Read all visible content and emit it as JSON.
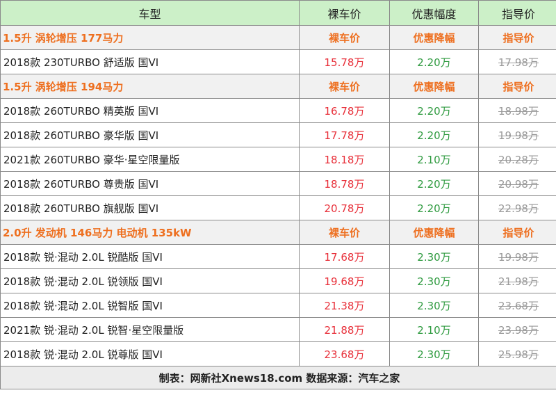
{
  "header": {
    "model": "车型",
    "price": "裸车价",
    "discount": "优惠幅度",
    "guide": "指导价"
  },
  "groups": [
    {
      "title": "1.5升 涡轮增压 177马力",
      "price": "裸车价",
      "discount": "优惠降幅",
      "guide": "指导价",
      "rows": [
        {
          "model": "2018款 230TURBO 舒适版 国VI",
          "price": "15.78万",
          "discount": "2.20万",
          "guide": "17.98万"
        }
      ]
    },
    {
      "title": "1.5升 涡轮增压 194马力",
      "price": "裸车价",
      "discount": "优惠降幅",
      "guide": "指导价",
      "rows": [
        {
          "model": "2018款 260TURBO 精英版 国VI",
          "price": "16.78万",
          "discount": "2.20万",
          "guide": "18.98万"
        },
        {
          "model": "2018款 260TURBO 豪华版 国VI",
          "price": "17.78万",
          "discount": "2.20万",
          "guide": "19.98万"
        },
        {
          "model": "2021款 260TURBO 豪华·星空限量版",
          "price": "18.18万",
          "discount": "2.10万",
          "guide": "20.28万"
        },
        {
          "model": "2018款 260TURBO 尊贵版 国VI",
          "price": "18.78万",
          "discount": "2.20万",
          "guide": "20.98万"
        },
        {
          "model": "2018款 260TURBO 旗舰版 国VI",
          "price": "20.78万",
          "discount": "2.20万",
          "guide": "22.98万"
        }
      ]
    },
    {
      "title": "2.0升 发动机 146马力 电动机 135kW",
      "price": "裸车价",
      "discount": "优惠降幅",
      "guide": "指导价",
      "rows": [
        {
          "model": "2018款 锐·混动 2.0L 锐酷版 国VI",
          "price": "17.68万",
          "discount": "2.30万",
          "guide": "19.98万"
        },
        {
          "model": "2018款 锐·混动 2.0L 锐领版 国VI",
          "price": "19.68万",
          "discount": "2.30万",
          "guide": "21.98万"
        },
        {
          "model": "2018款 锐·混动 2.0L 锐智版 国VI",
          "price": "21.38万",
          "discount": "2.30万",
          "guide": "23.68万"
        },
        {
          "model": "2021款 锐·混动 2.0L 锐智·星空限量版",
          "price": "21.88万",
          "discount": "2.10万",
          "guide": "23.98万"
        },
        {
          "model": "2018款 锐·混动 2.0L 锐尊版 国VI",
          "price": "23.68万",
          "discount": "2.30万",
          "guide": "25.98万"
        }
      ]
    }
  ],
  "footer": "制表：网新社Xnews18.com 数据来源：汽车之家",
  "colors": {
    "header_bg": "#ccf0c8",
    "group_text": "#ee6f1f",
    "price": "#e8303a",
    "discount": "#2e9a3f",
    "guide": "#999999"
  }
}
